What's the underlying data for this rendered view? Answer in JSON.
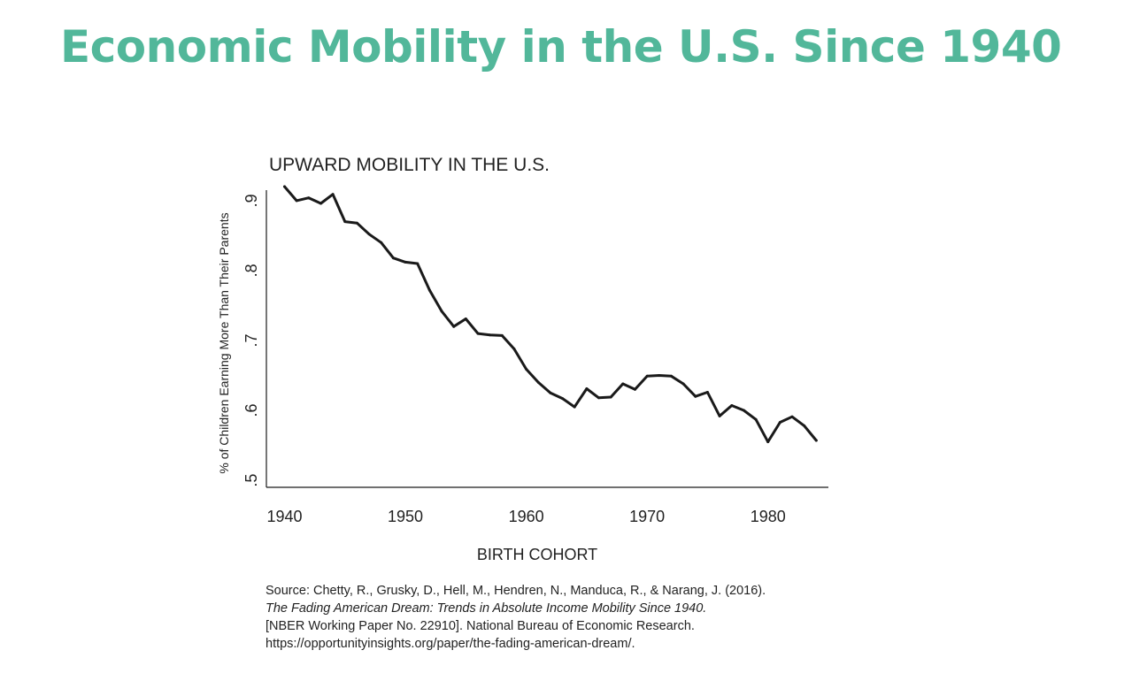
{
  "slide": {
    "title": "Economic Mobility in the U.S. Since 1940"
  },
  "colors": {
    "title": "#52b79a",
    "line": "#1a1a1a",
    "text": "#222222"
  },
  "chart_data": {
    "type": "line",
    "title": "UPWARD MOBILITY IN THE U.S.",
    "xlabel": "BIRTH COHORT",
    "ylabel": "% of Children Earning More Than Their Parents",
    "xlim": [
      1938.5,
      1985
    ],
    "ylim": [
      0.49,
      0.915
    ],
    "x_ticks": [
      1940,
      1950,
      1960,
      1970,
      1980
    ],
    "x_tick_labels": [
      "1940",
      "1950",
      "1960",
      "1970",
      "1980"
    ],
    "y_ticks": [
      0.5,
      0.6,
      0.7,
      0.8,
      0.9
    ],
    "y_tick_labels": [
      ".5",
      ".6",
      ".7",
      ".8",
      ".9"
    ],
    "grid": false,
    "series": [
      {
        "x": [
          1940,
          1941,
          1942,
          1943,
          1944,
          1945,
          1946,
          1947,
          1948,
          1949,
          1950,
          1951,
          1952,
          1953,
          1954,
          1955,
          1956,
          1957,
          1958,
          1959,
          1960,
          1961,
          1962,
          1963,
          1964,
          1965,
          1966,
          1967,
          1968,
          1969,
          1970,
          1971,
          1972,
          1973,
          1974,
          1975,
          1976,
          1977,
          1978,
          1979,
          1980,
          1981,
          1982,
          1983,
          1984
        ],
        "y": [
          0.92,
          0.9,
          0.904,
          0.896,
          0.909,
          0.87,
          0.868,
          0.852,
          0.84,
          0.818,
          0.812,
          0.81,
          0.772,
          0.742,
          0.72,
          0.731,
          0.71,
          0.708,
          0.707,
          0.688,
          0.659,
          0.64,
          0.625,
          0.617,
          0.605,
          0.631,
          0.618,
          0.619,
          0.638,
          0.63,
          0.649,
          0.65,
          0.649,
          0.638,
          0.62,
          0.626,
          0.592,
          0.607,
          0.6,
          0.587,
          0.555,
          0.583,
          0.591,
          0.578,
          0.557
        ]
      }
    ]
  },
  "source": {
    "line1": "Source: Chetty, R., Grusky, D., Hell, M., Hendren, N., Manduca, R., & Narang, J. (2016).",
    "line2": "The Fading American Dream: Trends in Absolute Income Mobility Since 1940.",
    "line3": "[NBER Working Paper No. 22910]. National Bureau of Economic Research.",
    "line4": "https://opportunityinsights.org/paper/the-fading-american-dream/."
  }
}
